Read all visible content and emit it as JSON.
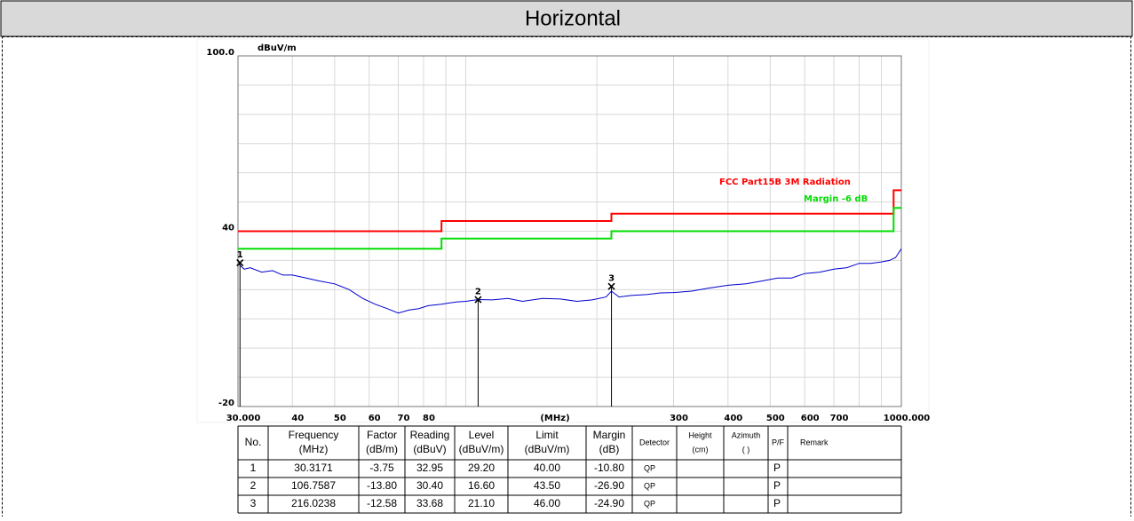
{
  "header": {
    "title": "Horizontal"
  },
  "chart_data": {
    "type": "line",
    "y_unit": "dBuV/m",
    "xlabel": "(MHz)",
    "xscale": "log",
    "xlim": [
      30,
      1000
    ],
    "xticks": [
      {
        "value": 30,
        "label": "30.000"
      },
      40,
      50,
      60,
      70,
      80,
      300,
      400,
      500,
      600,
      700,
      {
        "value": 1000,
        "label": "1000.000"
      }
    ],
    "xgrid": [
      90,
      100,
      200,
      800,
      900
    ],
    "ylim": [
      -20,
      100
    ],
    "yticks": [
      {
        "value": 100,
        "label": "100.0"
      },
      40,
      -20
    ],
    "ygrid": [
      -10,
      0,
      10,
      20,
      30,
      50,
      60,
      70,
      80,
      90
    ],
    "grid": true,
    "series": [
      {
        "name": "FCC Part15B 3M Radiation",
        "color": "#ff0000",
        "x": [
          30,
          88,
          88,
          216,
          216,
          960,
          960,
          1000
        ],
        "values": [
          40,
          40,
          43.5,
          43.5,
          46,
          46,
          54,
          54
        ]
      },
      {
        "name": "Margin -6 dB",
        "color": "#00dd00",
        "x": [
          30,
          88,
          88,
          216,
          216,
          960,
          960,
          1000
        ],
        "values": [
          34,
          34,
          37.5,
          37.5,
          40,
          40,
          48,
          48
        ]
      },
      {
        "color": "#0000cc",
        "x": [
          30,
          31,
          32,
          34,
          36,
          38,
          40,
          43,
          46,
          50,
          54,
          58,
          62,
          66,
          70,
          74,
          78,
          82,
          88,
          95,
          100,
          106.76,
          115,
          125,
          135,
          150,
          165,
          180,
          195,
          210,
          216,
          225,
          240,
          260,
          280,
          300,
          330,
          360,
          400,
          440,
          480,
          520,
          560,
          600,
          650,
          700,
          750,
          800,
          850,
          900,
          940,
          970,
          1000
        ],
        "values": [
          29,
          27,
          27.5,
          26,
          26.5,
          25,
          25,
          24,
          23,
          22,
          20,
          17,
          15,
          13.5,
          12,
          13,
          13.5,
          14.5,
          15,
          15.8,
          16,
          16.6,
          16.5,
          17,
          16,
          17,
          16.8,
          16,
          16.5,
          17.5,
          19.5,
          17.5,
          18,
          18.3,
          18.9,
          19,
          19.5,
          20.5,
          21.5,
          22,
          23,
          24,
          24,
          25.5,
          26,
          27,
          27.5,
          29,
          29,
          29.5,
          30,
          31,
          34
        ]
      }
    ],
    "markers": [
      {
        "label": "1",
        "x": 30.3171,
        "value": 29.2
      },
      {
        "label": "2",
        "x": 106.7587,
        "value": 16.6
      },
      {
        "label": "3",
        "x": 216.0238,
        "value": 21.1
      }
    ]
  },
  "table": {
    "columns": [
      [
        "No."
      ],
      [
        "Frequency",
        "(MHz)"
      ],
      [
        "Factor",
        "(dB/m)"
      ],
      [
        "Reading",
        "(dBuV)"
      ],
      [
        "Level",
        "(dBuV/m)"
      ],
      [
        "Limit",
        "(dBuV/m)"
      ],
      [
        "Margin",
        "(dB)"
      ],
      [
        "Detector"
      ],
      [
        "Height",
        "(cm)"
      ],
      [
        "Azimuth",
        "( )"
      ],
      [
        "P/F"
      ],
      [
        "Remark"
      ]
    ],
    "rows": [
      [
        "1",
        "30.3171",
        "-3.75",
        "32.95",
        "29.20",
        "40.00",
        "-10.80",
        "QP",
        null,
        null,
        "P",
        null
      ],
      [
        "2",
        "106.7587",
        "-13.80",
        "30.40",
        "16.60",
        "43.50",
        "-26.90",
        "QP",
        null,
        null,
        "P",
        null
      ],
      [
        "3",
        "216.0238",
        "-12.58",
        "33.68",
        "21.10",
        "46.00",
        "-24.90",
        "QP",
        null,
        null,
        "P",
        null
      ]
    ]
  }
}
